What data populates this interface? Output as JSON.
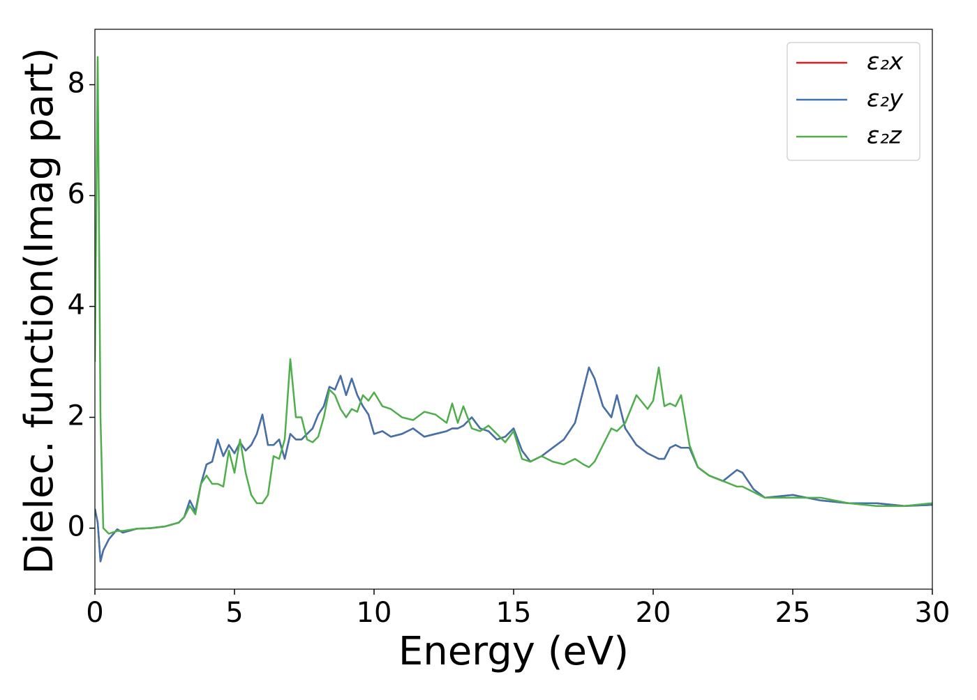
{
  "chart_data": {
    "type": "line",
    "x_label": "Energy (eV)",
    "y_label": "Dielec. function(Imag part)",
    "xlim": [
      0,
      30
    ],
    "xticks": [
      0,
      5,
      10,
      15,
      20,
      25,
      30
    ],
    "ylim": [
      -1.1,
      9.0
    ],
    "yticks": [
      0,
      2,
      4,
      6,
      8
    ],
    "legend": "upper right",
    "x": [
      0,
      0.1,
      0.2,
      0.3,
      0.5,
      0.8,
      1.0,
      1.5,
      2,
      2.5,
      3,
      3.2,
      3.4,
      3.6,
      3.8,
      4.0,
      4.2,
      4.4,
      4.6,
      4.8,
      5.0,
      5.2,
      5.4,
      5.6,
      5.8,
      6.0,
      6.2,
      6.4,
      6.6,
      6.8,
      7.0,
      7.2,
      7.4,
      7.6,
      7.8,
      8.0,
      8.2,
      8.4,
      8.6,
      8.8,
      9.0,
      9.2,
      9.4,
      9.6,
      9.8,
      10.0,
      10.3,
      10.6,
      11,
      11.4,
      11.8,
      12.2,
      12.6,
      12.8,
      13.0,
      13.2,
      13.5,
      13.8,
      14.1,
      14.4,
      14.7,
      15.0,
      15.3,
      15.6,
      16.0,
      16.4,
      16.8,
      17.2,
      17.5,
      17.7,
      17.9,
      18.2,
      18.5,
      18.7,
      19.0,
      19.4,
      19.8,
      20.0,
      20.2,
      20.4,
      20.6,
      20.8,
      21.0,
      21.3,
      21.6,
      22.0,
      22.5,
      23.0,
      23.2,
      23.6,
      24,
      25,
      26,
      27,
      28,
      29,
      30
    ],
    "series": [
      {
        "name": "ε₂x",
        "color": "#e41a1c",
        "values": [
          0.35,
          0.1,
          -0.6,
          -0.4,
          -0.2,
          -0.02,
          -0.08,
          -0.01,
          0.0,
          0.03,
          0.1,
          0.2,
          0.5,
          0.3,
          0.8,
          1.15,
          1.2,
          1.6,
          1.3,
          1.5,
          1.35,
          1.55,
          1.4,
          1.5,
          1.7,
          2.05,
          1.5,
          1.5,
          1.6,
          1.25,
          1.7,
          1.6,
          1.6,
          1.7,
          1.8,
          2.05,
          2.2,
          2.55,
          2.5,
          2.75,
          2.4,
          2.7,
          2.4,
          2.2,
          2.05,
          1.7,
          1.75,
          1.65,
          1.7,
          1.8,
          1.65,
          1.7,
          1.75,
          1.8,
          1.8,
          1.85,
          2.0,
          1.8,
          1.75,
          1.6,
          1.65,
          1.8,
          1.4,
          1.2,
          1.3,
          1.45,
          1.6,
          1.9,
          2.5,
          2.9,
          2.7,
          2.2,
          2.0,
          2.4,
          1.8,
          1.5,
          1.35,
          1.3,
          1.25,
          1.25,
          1.45,
          1.5,
          1.45,
          1.45,
          1.1,
          0.95,
          0.85,
          1.05,
          1.0,
          0.7,
          0.55,
          0.6,
          0.5,
          0.45,
          0.45,
          0.4,
          0.42
        ]
      },
      {
        "name": "ε₂y",
        "color": "#3f73ad",
        "values": [
          0.35,
          0.1,
          -0.6,
          -0.4,
          -0.2,
          -0.02,
          -0.08,
          -0.01,
          0.0,
          0.03,
          0.1,
          0.2,
          0.5,
          0.3,
          0.8,
          1.15,
          1.2,
          1.6,
          1.3,
          1.5,
          1.35,
          1.55,
          1.4,
          1.5,
          1.7,
          2.05,
          1.5,
          1.5,
          1.6,
          1.25,
          1.7,
          1.6,
          1.6,
          1.7,
          1.8,
          2.05,
          2.2,
          2.55,
          2.5,
          2.75,
          2.4,
          2.7,
          2.4,
          2.2,
          2.05,
          1.7,
          1.75,
          1.65,
          1.7,
          1.8,
          1.65,
          1.7,
          1.75,
          1.8,
          1.8,
          1.85,
          2.0,
          1.8,
          1.75,
          1.6,
          1.65,
          1.8,
          1.4,
          1.2,
          1.3,
          1.45,
          1.6,
          1.9,
          2.5,
          2.9,
          2.7,
          2.2,
          2.0,
          2.4,
          1.8,
          1.5,
          1.35,
          1.3,
          1.25,
          1.25,
          1.45,
          1.5,
          1.45,
          1.45,
          1.1,
          0.95,
          0.85,
          1.05,
          1.0,
          0.7,
          0.55,
          0.6,
          0.5,
          0.45,
          0.45,
          0.4,
          0.42
        ]
      },
      {
        "name": "ε₂z",
        "color": "#4daf4a",
        "values": [
          3.0,
          8.5,
          2.0,
          0.0,
          -0.1,
          -0.05,
          -0.05,
          -0.01,
          0.0,
          0.03,
          0.1,
          0.2,
          0.4,
          0.25,
          0.8,
          0.95,
          0.8,
          0.8,
          0.75,
          1.4,
          1.0,
          1.6,
          1.0,
          0.6,
          0.45,
          0.45,
          0.6,
          1.3,
          1.25,
          1.6,
          3.05,
          2.0,
          2.0,
          1.6,
          1.55,
          1.65,
          2.0,
          2.5,
          2.4,
          2.15,
          2.0,
          2.15,
          2.1,
          2.4,
          2.3,
          2.45,
          2.2,
          2.15,
          2.0,
          1.95,
          2.1,
          2.05,
          1.9,
          2.25,
          1.9,
          2.2,
          1.8,
          1.75,
          1.85,
          1.7,
          1.55,
          1.75,
          1.25,
          1.2,
          1.3,
          1.2,
          1.15,
          1.25,
          1.15,
          1.1,
          1.2,
          1.5,
          1.8,
          1.75,
          1.9,
          2.4,
          2.15,
          2.3,
          2.9,
          2.2,
          2.25,
          2.2,
          2.4,
          1.5,
          1.1,
          0.95,
          0.85,
          0.75,
          0.75,
          0.65,
          0.55,
          0.55,
          0.55,
          0.45,
          0.4,
          0.4,
          0.45
        ]
      }
    ]
  }
}
